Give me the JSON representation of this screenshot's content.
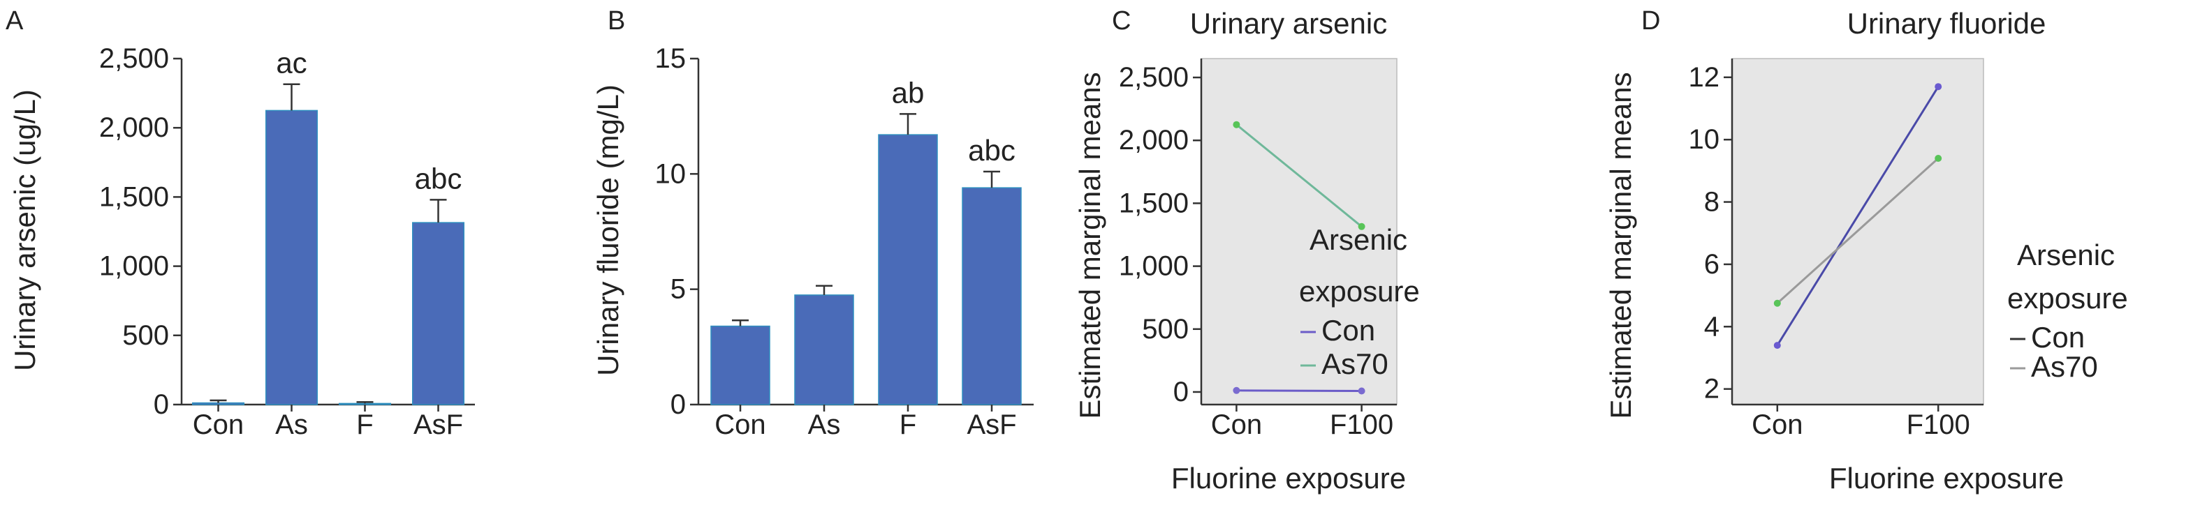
{
  "chart_data": [
    {
      "panel": "A",
      "type": "bar",
      "title": "",
      "ylabel": "Urinary arsenic (ug/L)",
      "xlabel": "",
      "categories": [
        "Con",
        "As",
        "F",
        "AsF"
      ],
      "values": [
        12,
        2125,
        8,
        1315
      ],
      "errors": [
        18,
        190,
        10,
        165
      ],
      "annotations": [
        "",
        "ac",
        "",
        "abc"
      ],
      "ylim": [
        0,
        2500
      ],
      "yticks": [
        0,
        500,
        1000,
        1500,
        2000,
        2500
      ],
      "ytick_labels": [
        "0",
        "500",
        "1,000",
        "1,500",
        "2,000",
        "2,500"
      ],
      "color": "#4a6bb8"
    },
    {
      "panel": "B",
      "type": "bar",
      "title": "",
      "ylabel": "Urinary fluoride (mg/L)",
      "xlabel": "",
      "categories": [
        "Con",
        "As",
        "F",
        "AsF"
      ],
      "values": [
        3.4,
        4.75,
        11.7,
        9.4
      ],
      "errors": [
        0.25,
        0.4,
        0.9,
        0.7
      ],
      "annotations": [
        "",
        "",
        "ab",
        "abc"
      ],
      "ylim": [
        0,
        15
      ],
      "yticks": [
        0,
        5,
        10,
        15
      ],
      "ytick_labels": [
        "0",
        "5",
        "10",
        "15"
      ],
      "color": "#4a6bb8"
    },
    {
      "panel": "C",
      "type": "line",
      "title": "Urinary arsenic",
      "ylabel": "Estimated marginal means",
      "xlabel": "Fluorine exposure",
      "x": [
        "Con",
        "F100"
      ],
      "series": [
        {
          "name": "Con",
          "values": [
            12,
            8
          ],
          "color": "#6b5cc8",
          "marker_color": "#7a6bd0"
        },
        {
          "name": "As70",
          "values": [
            2125,
            1315
          ],
          "color": "#6fb89a",
          "marker_color": "#58c458"
        }
      ],
      "ylim": [
        -100,
        2650
      ],
      "yticks": [
        0,
        500,
        1000,
        1500,
        2000,
        2500
      ],
      "ytick_labels": [
        "0",
        "500",
        "1,000",
        "1,500",
        "2,000",
        "2,500"
      ],
      "legend_title": [
        "Arsenic",
        "exposure"
      ],
      "legend_position": "center-left",
      "background": "#e6e6e6"
    },
    {
      "panel": "D",
      "type": "line",
      "title": "Urinary fluoride",
      "ylabel": "Estimated marginal means",
      "xlabel": "Fluorine exposure",
      "x": [
        "Con",
        "F100"
      ],
      "series": [
        {
          "name": "Con",
          "values": [
            3.4,
            11.7
          ],
          "color": "#4a4aa8",
          "marker_color": "#6a5ad0"
        },
        {
          "name": "As70",
          "values": [
            4.75,
            9.4
          ],
          "color": "#9a9a9a",
          "marker_color": "#58c458"
        }
      ],
      "ylim": [
        1.5,
        12.6
      ],
      "yticks": [
        2,
        4,
        6,
        8,
        10,
        12
      ],
      "ytick_labels": [
        "2",
        "4",
        "6",
        "8",
        "10",
        "12"
      ],
      "legend_title": [
        "Arsenic",
        "exposure"
      ],
      "legend_position": "center-right",
      "background": "#e6e6e6"
    }
  ]
}
